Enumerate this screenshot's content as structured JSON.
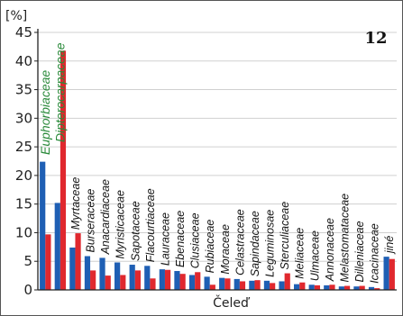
{
  "figure_number": "12",
  "highlight_color": "#2a8a3a",
  "chart_data": {
    "type": "bar",
    "title": "",
    "y_unit_label": "[%]",
    "xlabel": "Čeleď",
    "ylabel": "",
    "ylim": [
      0,
      45
    ],
    "yticks": [
      0,
      5,
      10,
      15,
      20,
      25,
      30,
      35,
      40,
      45
    ],
    "grid": true,
    "categories": [
      "Euphorbiaceae",
      "Dipterocarpaceae",
      "Myrtaceae",
      "Burseraceae",
      "Anacardiaceae",
      "Myristicaceae",
      "Sapotaceae",
      "Flacourtiaceae",
      "Lauraceae",
      "Ebenaceae",
      "Clusiaceae",
      "Rubiaceae",
      "Moraceae",
      "Celastraceae",
      "Sapindaceae",
      "Leguminosae",
      "Sterculiaceae",
      "Meliaceae",
      "Ulmaceae",
      "Annonaceae",
      "Melastomataceae",
      "Dilleniaceae",
      "Icacinaceae",
      "jiné"
    ],
    "highlighted_categories": [
      "Euphorbiaceae",
      "Dipterocarpaceae"
    ],
    "series": [
      {
        "color": "#1f5fb4",
        "values": [
          22.4,
          15.2,
          7.4,
          5.9,
          5.6,
          4.8,
          4.4,
          4.2,
          3.6,
          3.3,
          2.6,
          2.3,
          2.1,
          1.9,
          1.6,
          1.6,
          1.5,
          1.0,
          0.9,
          0.8,
          0.6,
          0.6,
          0.5,
          5.8
        ]
      },
      {
        "color": "#e0282e",
        "values": [
          9.7,
          41.8,
          9.9,
          3.4,
          2.5,
          2.6,
          3.4,
          2.0,
          3.5,
          2.8,
          3.1,
          0.9,
          2.0,
          1.5,
          1.7,
          1.2,
          2.9,
          1.3,
          0.8,
          0.9,
          0.7,
          0.7,
          0.3,
          5.4
        ]
      }
    ]
  }
}
